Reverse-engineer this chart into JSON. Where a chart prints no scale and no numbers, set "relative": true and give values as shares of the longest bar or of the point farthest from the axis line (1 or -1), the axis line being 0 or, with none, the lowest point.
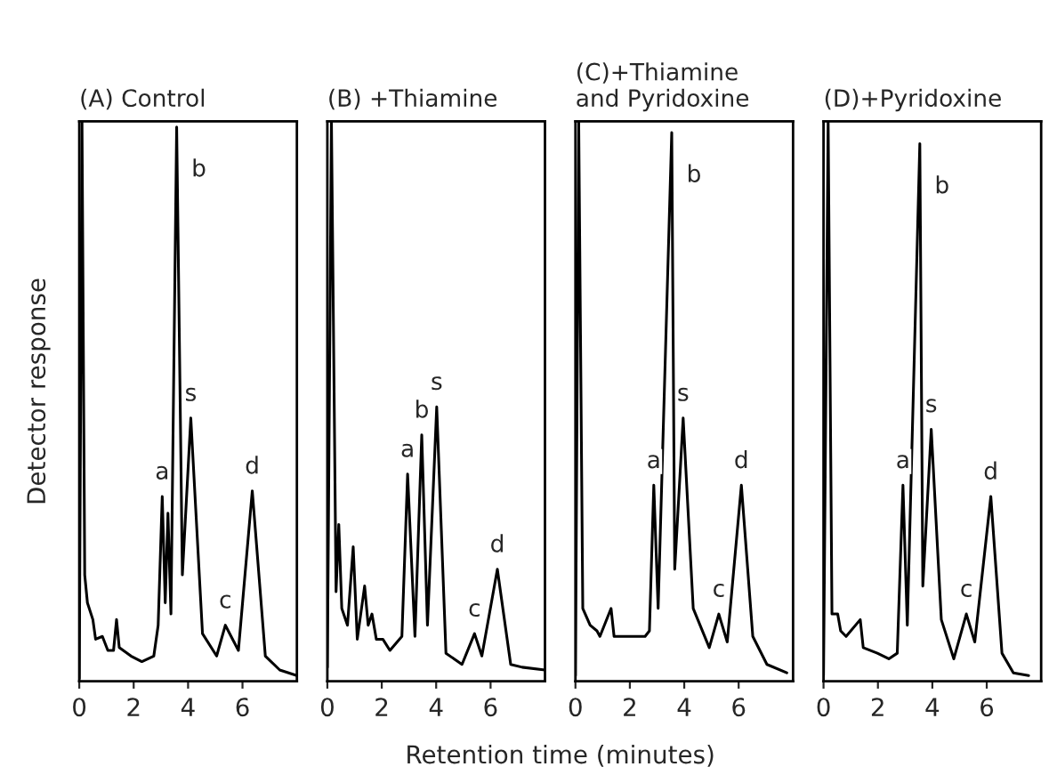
{
  "chart_data": [
    {
      "type": "line",
      "title": "(A) Control",
      "xlabel": "Retention time (minutes)",
      "ylabel": "Detector response",
      "relative": true,
      "tick_labels": "x",
      "xlim": [
        0,
        8
      ],
      "xticks": [
        0,
        2,
        4,
        6
      ],
      "series": [
        {
          "color": "#000000",
          "x": [
            0,
            0.1,
            0.2,
            0.3,
            0.5,
            0.6,
            0.85,
            1.05,
            1.26,
            1.37,
            1.47,
            1.9,
            2.3,
            2.74,
            2.9,
            3.05,
            3.16,
            3.26,
            3.37,
            3.58,
            3.79,
            4.1,
            4.53,
            5.05,
            5.37,
            5.85,
            6.36,
            6.84,
            7.37,
            8.0
          ],
          "values": [
            0.005,
            1.0,
            0.19,
            0.14,
            0.11,
            0.075,
            0.08,
            0.055,
            0.055,
            0.11,
            0.06,
            0.045,
            0.035,
            0.045,
            0.1,
            0.33,
            0.14,
            0.3,
            0.12,
            0.99,
            0.19,
            0.47,
            0.085,
            0.045,
            0.1,
            0.055,
            0.34,
            0.045,
            0.02,
            0.01
          ]
        }
      ],
      "annotations": [
        {
          "text": "a",
          "x": 3.05,
          "y": 0.33
        },
        {
          "text": "b",
          "x": 3.58,
          "y": 0.99
        },
        {
          "text": "s",
          "x": 4.1,
          "y": 0.47
        },
        {
          "text": "c",
          "x": 5.37,
          "y": 0.1
        },
        {
          "text": "d",
          "x": 6.36,
          "y": 0.34
        }
      ]
    },
    {
      "type": "line",
      "title": "(B) +Thiamine",
      "relative": true,
      "tick_labels": "x",
      "xlim": [
        0,
        8
      ],
      "xticks": [
        0,
        2,
        4,
        6
      ],
      "series": [
        {
          "color": "#000000",
          "x": [
            0,
            0.15,
            0.32,
            0.42,
            0.53,
            0.74,
            0.95,
            1.1,
            1.37,
            1.5,
            1.64,
            1.8,
            2.04,
            2.3,
            2.74,
            2.95,
            3.22,
            3.47,
            3.68,
            4.02,
            4.36,
            4.95,
            5.41,
            5.68,
            6.25,
            6.74,
            7.16,
            8.0
          ],
          "values": [
            0.025,
            1.0,
            0.16,
            0.28,
            0.13,
            0.1,
            0.24,
            0.075,
            0.17,
            0.1,
            0.12,
            0.075,
            0.075,
            0.055,
            0.08,
            0.37,
            0.08,
            0.44,
            0.1,
            0.49,
            0.05,
            0.03,
            0.085,
            0.045,
            0.2,
            0.03,
            0.025,
            0.02
          ]
        }
      ],
      "annotations": [
        {
          "text": "a",
          "x": 2.95,
          "y": 0.37
        },
        {
          "text": "b",
          "x": 3.47,
          "y": 0.44
        },
        {
          "text": "s",
          "x": 4.02,
          "y": 0.49
        },
        {
          "text": "c",
          "x": 5.41,
          "y": 0.085
        },
        {
          "text": "d",
          "x": 6.25,
          "y": 0.2
        }
      ]
    },
    {
      "type": "line",
      "title": "(C)+Thiamine\nand Pyridoxine",
      "relative": true,
      "tick_labels": "x",
      "xlim": [
        0,
        8
      ],
      "xticks": [
        0,
        2,
        4,
        6
      ],
      "series": [
        {
          "color": "#000000",
          "x": [
            0,
            0.12,
            0.27,
            0.54,
            0.79,
            0.9,
            1.31,
            1.42,
            2.04,
            2.56,
            2.72,
            2.88,
            3.04,
            3.54,
            3.65,
            3.96,
            4.33,
            4.92,
            5.27,
            5.58,
            6.1,
            6.52,
            7.04,
            7.77
          ],
          "values": [
            0.01,
            1.0,
            0.13,
            0.1,
            0.09,
            0.08,
            0.13,
            0.08,
            0.08,
            0.08,
            0.09,
            0.35,
            0.13,
            0.98,
            0.2,
            0.47,
            0.13,
            0.06,
            0.12,
            0.07,
            0.35,
            0.08,
            0.03,
            0.015
          ]
        }
      ],
      "annotations": [
        {
          "text": "a",
          "x": 2.88,
          "y": 0.35
        },
        {
          "text": "b",
          "x": 3.54,
          "y": 0.98
        },
        {
          "text": "s",
          "x": 3.96,
          "y": 0.47
        },
        {
          "text": "c",
          "x": 5.27,
          "y": 0.12
        },
        {
          "text": "d",
          "x": 6.1,
          "y": 0.35
        }
      ]
    },
    {
      "type": "line",
      "title": "(D)+Pyridoxine",
      "relative": true,
      "tick_labels": "x",
      "xlim": [
        0,
        8
      ],
      "xticks": [
        0,
        2,
        4,
        6
      ],
      "series": [
        {
          "color": "#000000",
          "x": [
            0,
            0.17,
            0.31,
            0.52,
            0.63,
            0.83,
            1.35,
            1.46,
            1.98,
            2.4,
            2.71,
            2.92,
            3.08,
            3.54,
            3.65,
            3.96,
            4.33,
            4.79,
            5.25,
            5.56,
            6.15,
            6.56,
            6.98,
            7.54
          ],
          "values": [
            0.01,
            1.0,
            0.12,
            0.12,
            0.09,
            0.08,
            0.11,
            0.06,
            0.05,
            0.04,
            0.05,
            0.35,
            0.1,
            0.96,
            0.17,
            0.45,
            0.11,
            0.04,
            0.12,
            0.07,
            0.33,
            0.05,
            0.015,
            0.01
          ]
        }
      ],
      "annotations": [
        {
          "text": "a",
          "x": 2.92,
          "y": 0.35
        },
        {
          "text": "b",
          "x": 3.54,
          "y": 0.96
        },
        {
          "text": "s",
          "x": 3.96,
          "y": 0.45
        },
        {
          "text": "c",
          "x": 5.25,
          "y": 0.12
        },
        {
          "text": "d",
          "x": 6.15,
          "y": 0.33
        }
      ]
    }
  ]
}
